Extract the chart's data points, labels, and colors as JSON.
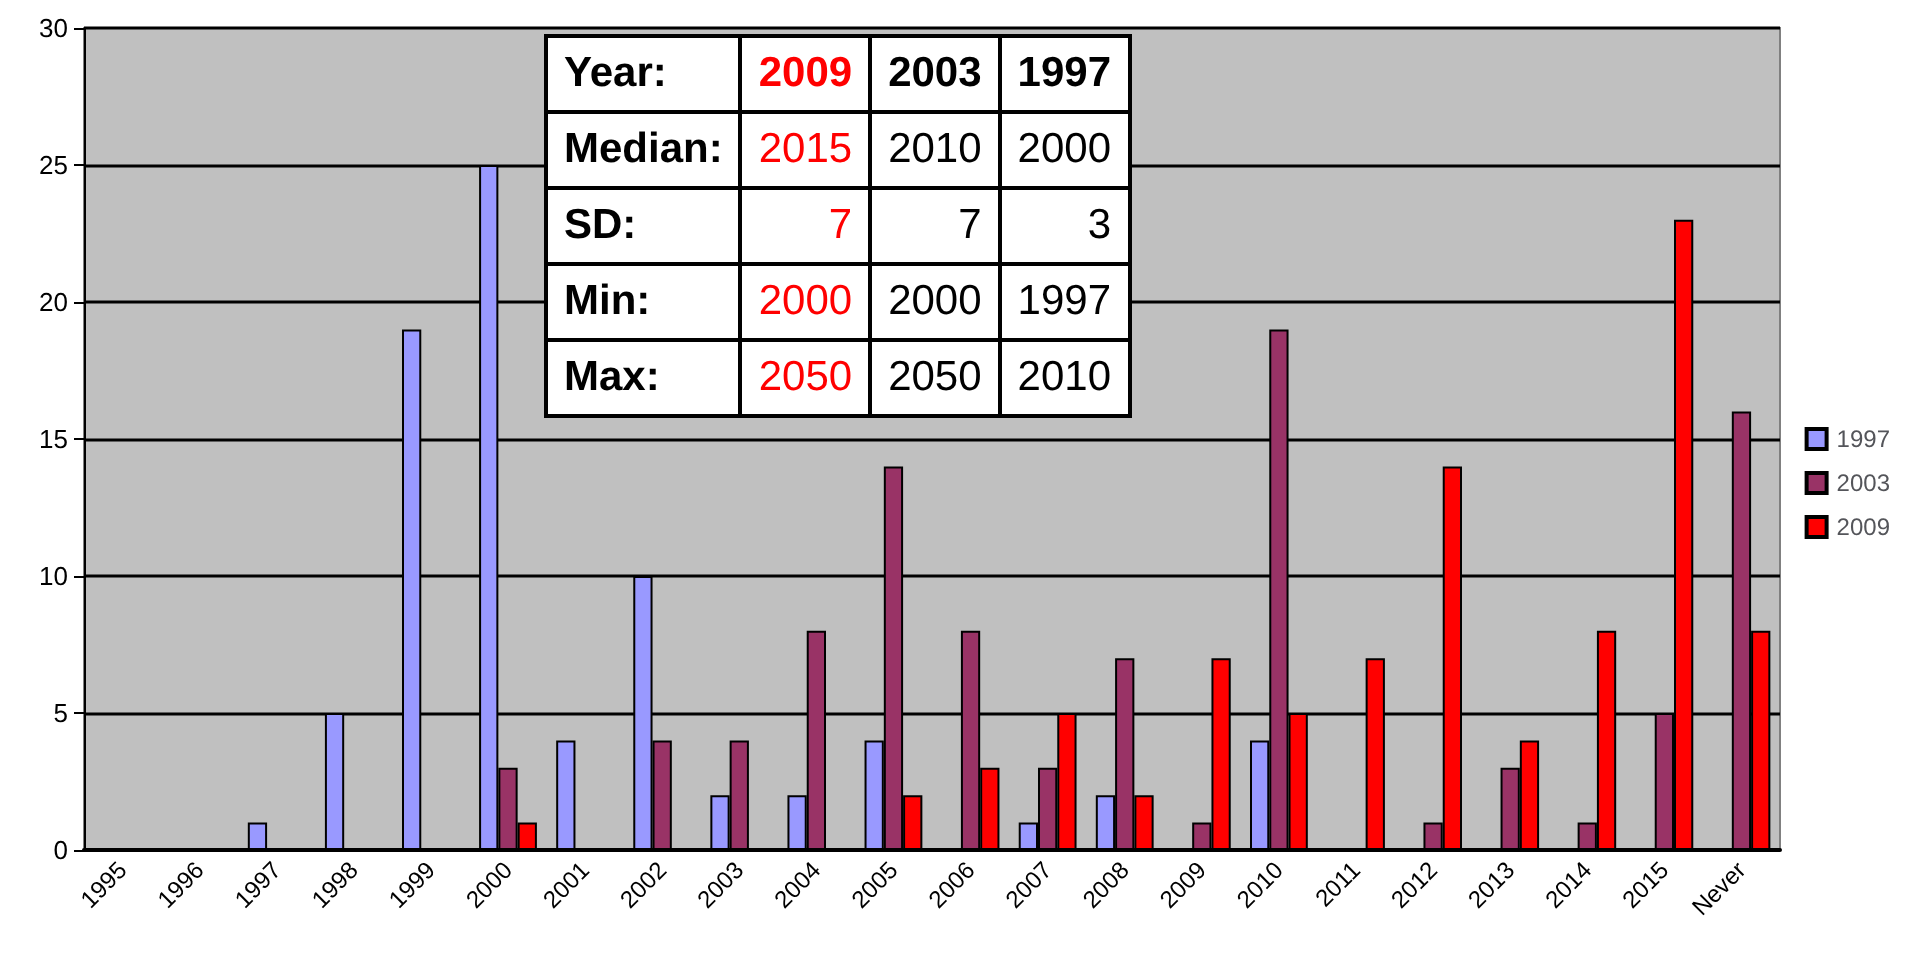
{
  "chart_data": {
    "type": "bar",
    "categories": [
      "1995",
      "1996",
      "1997",
      "1998",
      "1999",
      "2000",
      "2001",
      "2002",
      "2003",
      "2004",
      "2005",
      "2006",
      "2007",
      "2008",
      "2009",
      "2010",
      "2011",
      "2012",
      "2013",
      "2014",
      "2015",
      "Never"
    ],
    "series": [
      {
        "name": "1997",
        "color": "#9999ff",
        "values": [
          0,
          0,
          1,
          5,
          19,
          25,
          4,
          10,
          2,
          2,
          4,
          0,
          1,
          2,
          0,
          4,
          0,
          0,
          0,
          0,
          0,
          0
        ]
      },
      {
        "name": "2003",
        "color": "#993366",
        "values": [
          0,
          0,
          0,
          0,
          0,
          3,
          0,
          4,
          4,
          8,
          14,
          8,
          3,
          7,
          1,
          19,
          0,
          1,
          3,
          1,
          5,
          16
        ]
      },
      {
        "name": "2009",
        "color": "#ff0000",
        "values": [
          0,
          0,
          0,
          0,
          0,
          1,
          0,
          0,
          0,
          0,
          2,
          3,
          5,
          2,
          7,
          5,
          7,
          14,
          4,
          8,
          23,
          8
        ]
      }
    ],
    "ylim": [
      0,
      30
    ],
    "yticks": [
      0,
      5,
      10,
      15,
      20,
      25,
      30
    ],
    "grid": "y",
    "legend": "right",
    "annotations": [
      "Year:",
      "2009",
      "2003",
      "1997",
      "Median:",
      "2015",
      "2010",
      "2000",
      "SD:",
      "7",
      "7",
      "3",
      "Min:",
      "2000",
      "2000",
      "1997",
      "Max:",
      "2050",
      "2050",
      "2010"
    ]
  }
}
